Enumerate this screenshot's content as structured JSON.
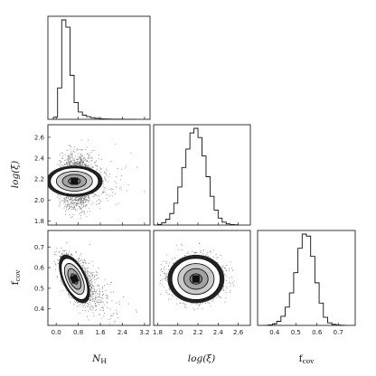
{
  "chart_data": {
    "type": "corner",
    "parameters": [
      {
        "key": "nh",
        "label": "N",
        "label_sub": "H",
        "range": [
          -0.3,
          3.4
        ],
        "ticks": [
          0.0,
          0.8,
          1.6,
          2.4,
          3.2
        ],
        "tick_labels": [
          "0.0",
          "0.8",
          "1.6",
          "2.4",
          "3.2"
        ],
        "label_style": "italic"
      },
      {
        "key": "logxi",
        "label": "log(ξ)",
        "label_sub": "",
        "range": [
          1.76,
          2.72
        ],
        "ticks": [
          1.8,
          2.0,
          2.2,
          2.4,
          2.6
        ],
        "tick_labels": [
          "1.8",
          "2.0",
          "2.2",
          "2.4",
          "2.6"
        ],
        "label_style": "italic"
      },
      {
        "key": "fcov",
        "label": "f",
        "label_sub": "cov",
        "range": [
          0.32,
          0.78
        ],
        "ticks": [
          0.4,
          0.5,
          0.6,
          0.7
        ],
        "tick_labels": [
          "0.4",
          "0.5",
          "0.6",
          "0.7"
        ],
        "label_style": "upright"
      }
    ],
    "histograms": {
      "nh": {
        "edges_start": -0.1,
        "bin_width": 0.15,
        "counts": [
          2,
          30,
          95,
          88,
          42,
          16,
          7,
          4,
          2.5,
          1.6,
          1,
          0.6,
          0.4,
          0.3,
          0.2,
          0.15,
          0.1,
          0.08,
          0.05,
          0.03
        ]
      },
      "logxi": {
        "edges_start": 1.8,
        "bin_width": 0.04,
        "counts": [
          0.5,
          2,
          5,
          10,
          19,
          33,
          50,
          66,
          80,
          84,
          76,
          60,
          42,
          25,
          13,
          6,
          2.5,
          1,
          0.4,
          0.2
        ]
      },
      "fcov": {
        "edges_start": 0.35,
        "bin_width": 0.02,
        "counts": [
          0.1,
          0.5,
          1.5,
          4,
          9,
          18,
          32,
          52,
          76,
          90,
          88,
          68,
          42,
          22,
          8,
          2.5,
          1,
          0.4,
          0.2
        ]
      }
    },
    "joint": {
      "logxi_vs_nh": {
        "center": [
          0.66,
          2.18
        ],
        "sigma": [
          0.24,
          0.115
        ],
        "rho": 0.0,
        "tail": "right"
      },
      "fcov_vs_nh": {
        "center": [
          0.66,
          0.545
        ],
        "sigma": [
          0.24,
          0.05
        ],
        "rho": -0.55,
        "tail": "right"
      },
      "fcov_vs_logxi": {
        "center": [
          2.18,
          0.545
        ],
        "sigma": [
          0.12,
          0.05
        ],
        "rho": 0.0,
        "tail": "none"
      }
    },
    "contour_levels_sigma": [
      0.5,
      1.0,
      1.5,
      2.0
    ],
    "grid": false,
    "legend": "none"
  },
  "colors": {
    "ink": "#111111",
    "shade": [
      "#5a5a5a",
      "#7d7d7d",
      "#a2a2a2",
      "#c9c9c9"
    ]
  }
}
